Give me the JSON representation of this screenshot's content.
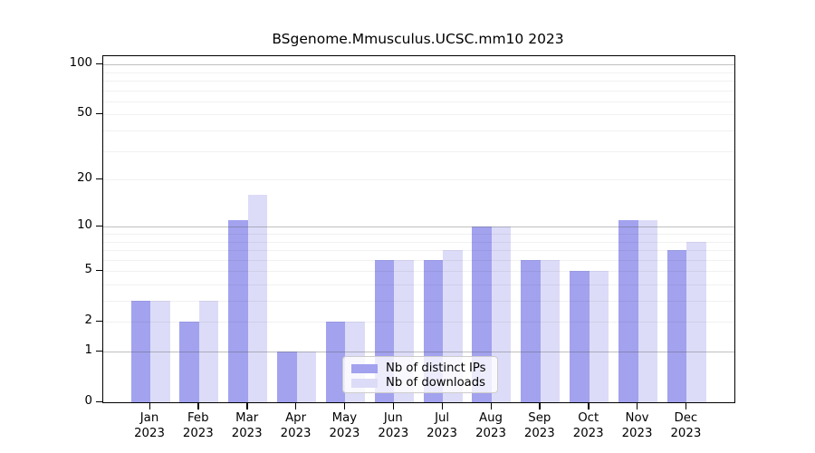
{
  "title": "BSgenome.Mmusculus.UCSC.mm10 2023",
  "legend": {
    "items": [
      {
        "label": "Nb of distinct IPs",
        "color": "#a2a2ef"
      },
      {
        "label": "Nb of downloads",
        "color": "#dcdcf8"
      }
    ],
    "position": "bottom-center"
  },
  "chart_data": {
    "type": "bar",
    "title": "BSgenome.Mmusculus.UCSC.mm10 2023",
    "categories": [
      "Jan",
      "Feb",
      "Mar",
      "Apr",
      "May",
      "Jun",
      "Jul",
      "Aug",
      "Sep",
      "Oct",
      "Nov",
      "Dec"
    ],
    "year_label": "2023",
    "series": [
      {
        "name": "Nb of distinct IPs",
        "color": "#a2a2ef",
        "values": [
          3,
          2,
          11,
          1,
          2,
          6,
          6,
          10,
          6,
          5,
          11,
          7
        ]
      },
      {
        "name": "Nb of downloads",
        "color": "#dcdcf8",
        "values": [
          3,
          3,
          16,
          1,
          2,
          6,
          7,
          10,
          6,
          5,
          11,
          8
        ]
      }
    ],
    "xlabel": "",
    "ylabel": "",
    "yscale": "log1p",
    "ylim": [
      0,
      113
    ],
    "yticks": [
      0,
      1,
      2,
      5,
      10,
      20,
      50,
      100
    ],
    "major_gridlines": [
      1,
      10,
      100
    ],
    "minor_gridlines": [
      2,
      3,
      4,
      5,
      6,
      7,
      8,
      9,
      20,
      30,
      40,
      50,
      60,
      70,
      80,
      90
    ],
    "grid": "horizontal",
    "legend_position": "bottom-center"
  }
}
